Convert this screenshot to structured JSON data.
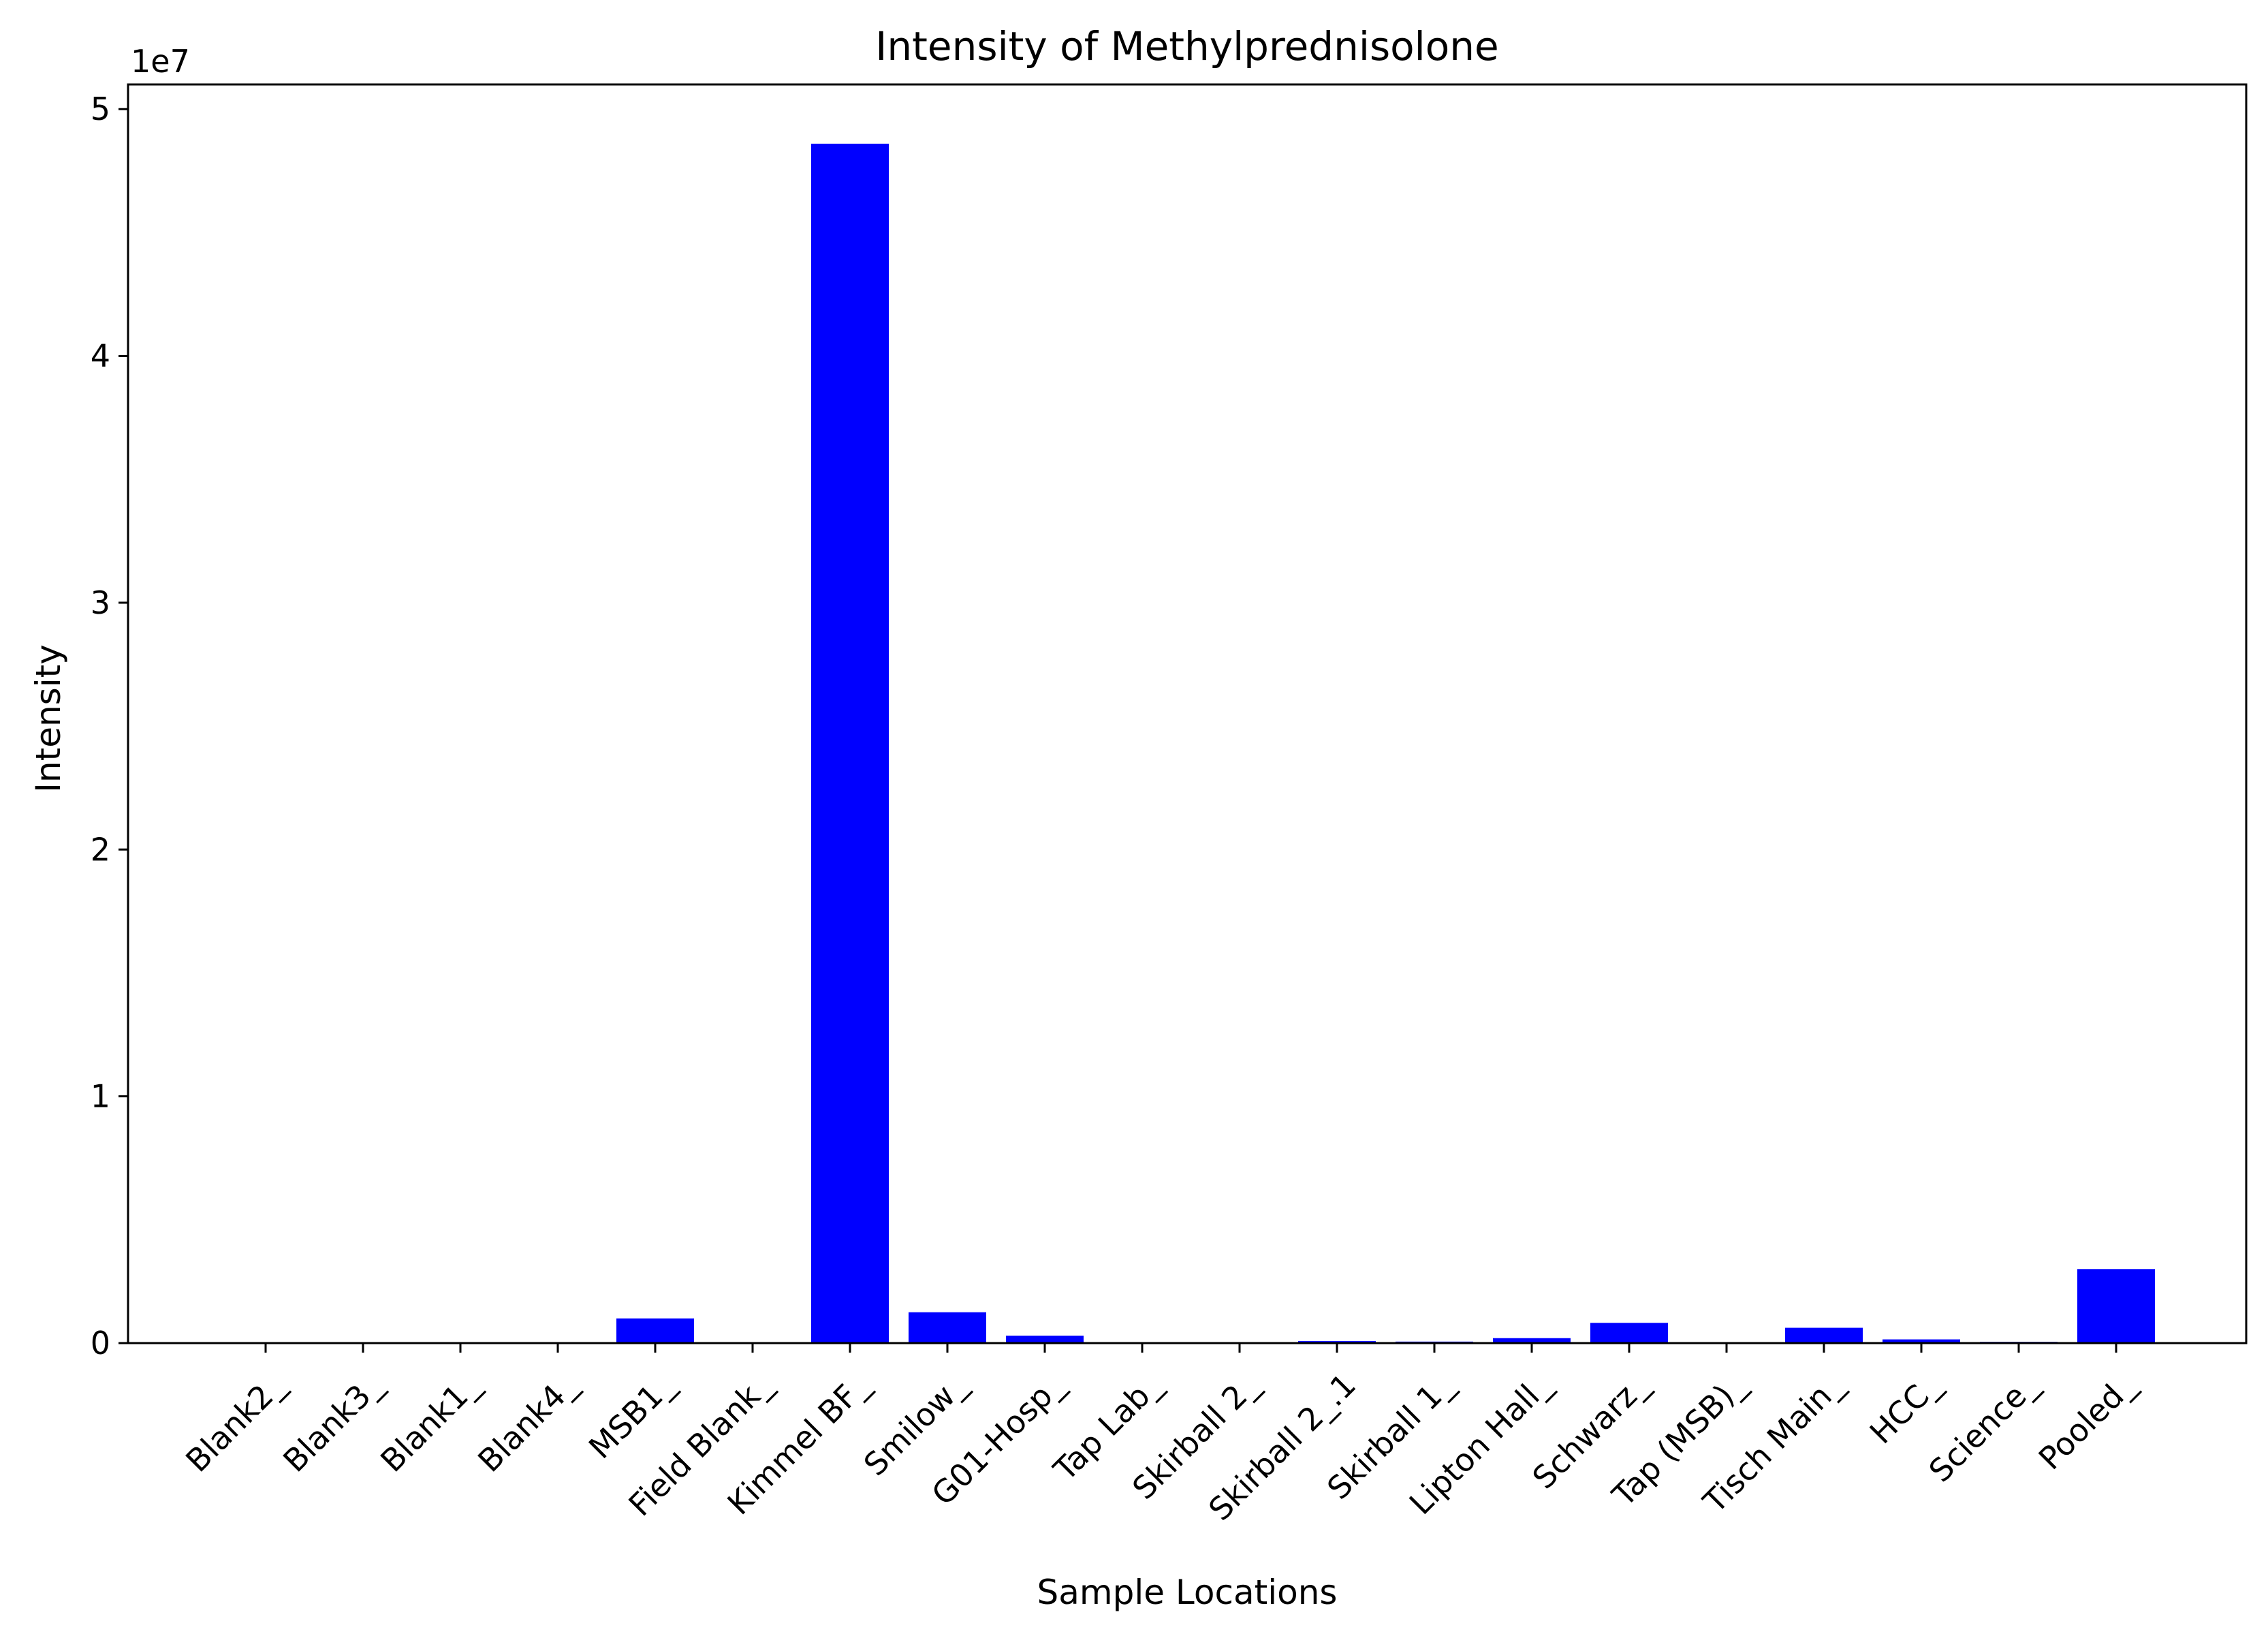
{
  "chart_data": {
    "type": "bar",
    "title": "Intensity of Methylprednisolone",
    "xlabel": "Sample Locations",
    "ylabel": "Intensity",
    "y_offset_label": "1e7",
    "y_scale_factor": 10000000,
    "ylim": [
      0,
      51000000
    ],
    "yticks": [
      0,
      10000000,
      20000000,
      30000000,
      40000000,
      50000000
    ],
    "ytick_labels": [
      "0",
      "1",
      "2",
      "3",
      "4",
      "5"
    ],
    "x_tick_rotation_deg": 45,
    "grid": false,
    "bar_color": "#0000ff",
    "categories": [
      "Blank2_",
      "Blank3_",
      "Blank1_",
      "Blank4_",
      "MSB1_",
      "Field Blank_",
      "Kimmel BF_",
      "Smilow_",
      "G01-Hosp_",
      "Tap Lab_",
      "Skirball 2_",
      "Skirball 2_.1",
      "Skirball 1_",
      "Lipton Hall_",
      "Schwarz_",
      "Tap (MSB)_",
      "Tisch Main_",
      "HCC_",
      "Science_",
      "Pooled_"
    ],
    "values": [
      0,
      0,
      0,
      0,
      1000000,
      0,
      48600000,
      1250000,
      300000,
      0,
      0,
      80000,
      60000,
      200000,
      820000,
      0,
      620000,
      150000,
      50000,
      3000000
    ]
  }
}
